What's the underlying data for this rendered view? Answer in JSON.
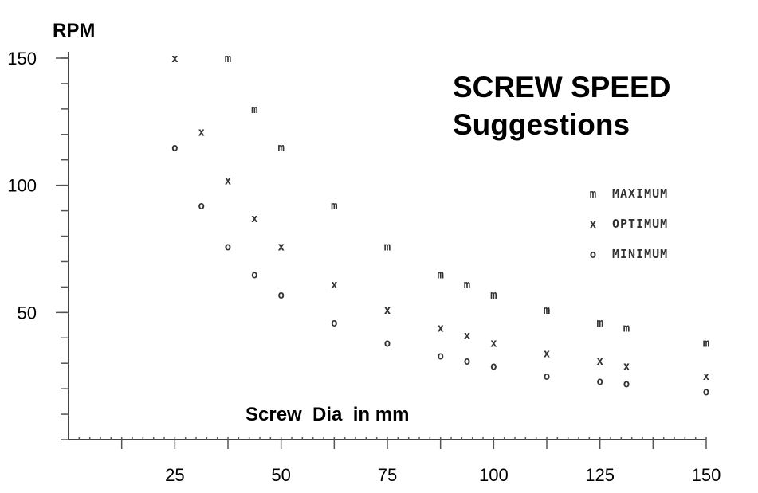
{
  "chart_data": {
    "type": "scatter",
    "title": "SCREW SPEED",
    "subtitle": "Suggestions",
    "xlabel": "Screw  Dia  in mm",
    "ylabel": "RPM",
    "xlim": [
      0,
      150
    ],
    "ylim": [
      0,
      150
    ],
    "x_ticks": [
      "25",
      "50",
      "75",
      "100",
      "125",
      "150"
    ],
    "y_ticks": [
      "50",
      "100",
      "150"
    ],
    "legend_position": "right",
    "series": [
      {
        "name": "MAXIMUM",
        "marker": "m",
        "points": [
          [
            37.5,
            150
          ],
          [
            43.75,
            130
          ],
          [
            50,
            115
          ],
          [
            62.5,
            92
          ],
          [
            75,
            76
          ],
          [
            87.5,
            65
          ],
          [
            93.75,
            61
          ],
          [
            100,
            57
          ],
          [
            112.5,
            51
          ],
          [
            125,
            46
          ],
          [
            131.25,
            44
          ],
          [
            150,
            38
          ]
        ]
      },
      {
        "name": "OPTIMUM",
        "marker": "x",
        "points": [
          [
            25,
            150
          ],
          [
            31.25,
            121
          ],
          [
            37.5,
            102
          ],
          [
            43.75,
            87
          ],
          [
            50,
            76
          ],
          [
            62.5,
            61
          ],
          [
            75,
            51
          ],
          [
            87.5,
            44
          ],
          [
            93.75,
            41
          ],
          [
            100,
            38
          ],
          [
            112.5,
            34
          ],
          [
            125,
            31
          ],
          [
            131.25,
            29
          ],
          [
            150,
            25
          ]
        ]
      },
      {
        "name": "MINIMUM",
        "marker": "o",
        "points": [
          [
            25,
            115
          ],
          [
            31.25,
            92
          ],
          [
            37.5,
            76
          ],
          [
            43.75,
            65
          ],
          [
            50,
            57
          ],
          [
            62.5,
            46
          ],
          [
            75,
            38
          ],
          [
            87.5,
            33
          ],
          [
            93.75,
            31
          ],
          [
            100,
            29
          ],
          [
            112.5,
            25
          ],
          [
            125,
            23
          ],
          [
            131.25,
            22
          ],
          [
            150,
            19
          ]
        ]
      }
    ]
  }
}
